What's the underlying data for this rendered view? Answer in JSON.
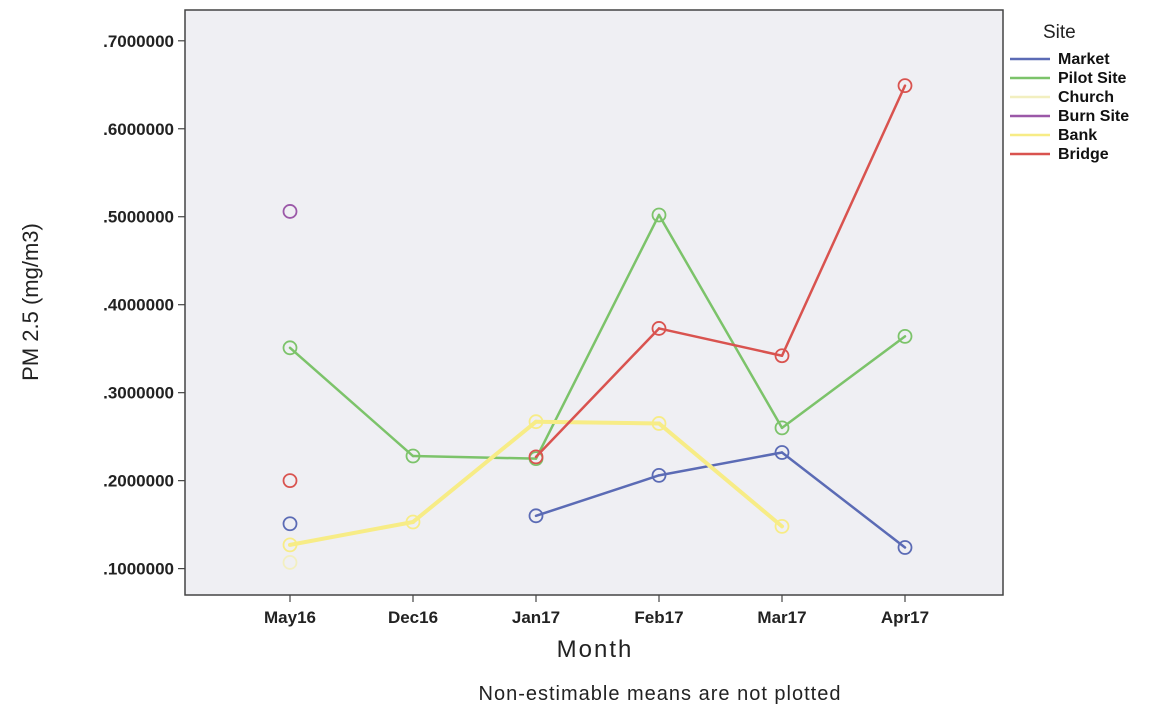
{
  "chart_data": {
    "type": "line",
    "xlabel": "Month",
    "ylabel": "PM 2.5 (mg/m3)",
    "categories": [
      "May16",
      "Dec16",
      "Jan17",
      "Feb17",
      "Mar17",
      "Apr17"
    ],
    "ylim": [
      0.07,
      0.735
    ],
    "yticks": [
      0.1,
      0.2,
      0.3,
      0.4,
      0.5,
      0.6,
      0.7
    ],
    "ytick_labels": [
      ".1000000",
      ".2000000",
      ".3000000",
      ".4000000",
      ".5000000",
      ".6000000",
      ".7000000"
    ],
    "grid": false,
    "legend_title": "Site",
    "legend_position": "right",
    "footnote": "Non-estimable means are not plotted",
    "series": [
      {
        "name": "Market",
        "color": "#5b6bb5",
        "values": [
          0.151,
          null,
          0.16,
          0.206,
          0.232,
          0.124
        ]
      },
      {
        "name": "Pilot Site",
        "color": "#7cc36a",
        "values": [
          0.351,
          0.228,
          0.225,
          0.502,
          0.26,
          0.364
        ]
      },
      {
        "name": "Church",
        "color": "#f2efc0",
        "values": [
          0.107,
          null,
          null,
          null,
          null,
          null
        ]
      },
      {
        "name": "Burn Site",
        "color": "#9b58a8",
        "values": [
          0.506,
          null,
          null,
          null,
          null,
          null
        ]
      },
      {
        "name": "Bank",
        "color": "#f7ec86",
        "values": [
          0.127,
          0.153,
          0.267,
          0.265,
          0.148,
          null
        ]
      },
      {
        "name": "Bridge",
        "color": "#d9534f",
        "values": [
          0.2,
          null,
          0.227,
          0.373,
          0.342,
          0.649
        ]
      }
    ]
  }
}
